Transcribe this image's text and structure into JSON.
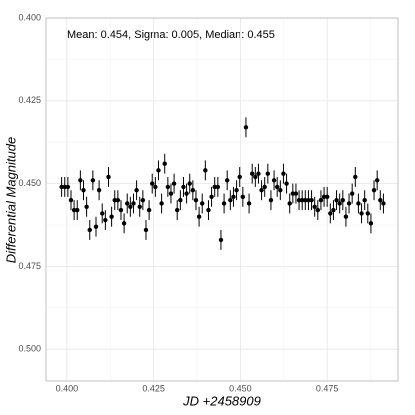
{
  "chart_data": {
    "type": "scatter",
    "annotation": "Mean: 0.454, Sigma: 0.005, Median: 0.455",
    "xlabel": "JD +2458909",
    "ylabel": "Differential Magnitude",
    "xlim": [
      0.394,
      0.4954
    ],
    "ylim": [
      0.5096,
      0.4
    ],
    "xticks": [
      {
        "value": 0.4,
        "label": "0.400"
      },
      0.425,
      {
        "value": 0.45,
        "label": "0.450"
      },
      0.475
    ],
    "yticks": [
      {
        "value": 0.4,
        "label": "0.400"
      },
      0.425,
      {
        "value": 0.45,
        "label": "0.450"
      },
      0.475,
      {
        "value": 0.5,
        "label": "0.500"
      }
    ],
    "xminor": [
      0.4125,
      0.4375,
      0.4625,
      0.4875
    ],
    "yminor": [
      0.4125,
      0.4375,
      0.4625,
      0.4875
    ],
    "grid": true,
    "series": [
      {
        "color": "#000000",
        "x": [
          0.3985,
          0.3994,
          0.4003,
          0.4012,
          0.4021,
          0.403,
          0.4039,
          0.4048,
          0.4057,
          0.4066,
          0.4075,
          0.4084,
          0.4093,
          0.4102,
          0.4111,
          0.412,
          0.4129,
          0.4138,
          0.4147,
          0.4156,
          0.4165,
          0.4174,
          0.4183,
          0.4192,
          0.4201,
          0.421,
          0.4219,
          0.4228,
          0.4237,
          0.4246,
          0.4255,
          0.4264,
          0.4273,
          0.4282,
          0.4291,
          0.43,
          0.4309,
          0.4318,
          0.4327,
          0.4336,
          0.4345,
          0.4354,
          0.4363,
          0.4372,
          0.4381,
          0.439,
          0.4399,
          0.4408,
          0.4417,
          0.4426,
          0.4435,
          0.4444,
          0.4453,
          0.4462,
          0.4471,
          0.448,
          0.4489,
          0.4498,
          0.4507,
          0.4516,
          0.4525,
          0.4534,
          0.4543,
          0.4552,
          0.4561,
          0.457,
          0.4579,
          0.4588,
          0.4597,
          0.4606,
          0.4615,
          0.4624,
          0.4633,
          0.4642,
          0.4651,
          0.466,
          0.4669,
          0.4678,
          0.4687,
          0.4696,
          0.4705,
          0.4714,
          0.4723,
          0.4732,
          0.4741,
          0.475,
          0.4759,
          0.4768,
          0.4777,
          0.4786,
          0.4795,
          0.4804,
          0.4813,
          0.4822,
          0.4831,
          0.484,
          0.4849,
          0.4858,
          0.4867,
          0.4876,
          0.4885,
          0.4894,
          0.4903,
          0.4912
        ],
        "values": [
          0.451,
          0.451,
          0.451,
          0.455,
          0.458,
          0.458,
          0.449,
          0.452,
          0.457,
          0.464,
          0.449,
          0.463,
          0.452,
          0.459,
          0.461,
          0.448,
          0.46,
          0.455,
          0.455,
          0.458,
          0.462,
          0.456,
          0.457,
          0.456,
          0.452,
          0.457,
          0.455,
          0.464,
          0.458,
          0.45,
          0.451,
          0.446,
          0.456,
          0.444,
          0.451,
          0.453,
          0.45,
          0.458,
          0.455,
          0.451,
          0.453,
          0.45,
          0.452,
          0.455,
          0.46,
          0.456,
          0.446,
          0.458,
          0.454,
          0.451,
          0.451,
          0.467,
          0.456,
          0.449,
          0.455,
          0.454,
          0.452,
          0.448,
          0.454,
          0.433,
          0.456,
          0.447,
          0.448,
          0.447,
          0.452,
          0.451,
          0.447,
          0.455,
          0.449,
          0.451,
          0.452,
          0.447,
          0.45,
          0.456,
          0.453,
          0.453,
          0.455,
          0.455,
          0.455,
          0.455,
          0.455,
          0.457,
          0.458,
          0.455,
          0.454,
          0.454,
          0.459,
          0.458,
          0.455,
          0.456,
          0.455,
          0.46,
          0.456,
          0.453,
          0.448,
          0.456,
          0.459,
          0.455,
          0.459,
          0.462,
          0.452,
          0.449,
          0.455,
          0.456
        ],
        "errors": [
          0.003,
          0.003,
          0.003,
          0.003,
          0.003,
          0.003,
          0.003,
          0.003,
          0.003,
          0.003,
          0.003,
          0.003,
          0.003,
          0.003,
          0.003,
          0.003,
          0.003,
          0.003,
          0.003,
          0.003,
          0.003,
          0.003,
          0.003,
          0.003,
          0.003,
          0.003,
          0.003,
          0.003,
          0.003,
          0.003,
          0.003,
          0.003,
          0.003,
          0.003,
          0.003,
          0.003,
          0.003,
          0.003,
          0.003,
          0.003,
          0.003,
          0.003,
          0.003,
          0.003,
          0.003,
          0.003,
          0.003,
          0.003,
          0.003,
          0.003,
          0.003,
          0.003,
          0.003,
          0.003,
          0.003,
          0.003,
          0.003,
          0.003,
          0.003,
          0.003,
          0.003,
          0.003,
          0.003,
          0.003,
          0.003,
          0.003,
          0.003,
          0.003,
          0.003,
          0.003,
          0.003,
          0.003,
          0.003,
          0.003,
          0.003,
          0.003,
          0.003,
          0.003,
          0.003,
          0.003,
          0.003,
          0.003,
          0.003,
          0.003,
          0.003,
          0.003,
          0.003,
          0.003,
          0.003,
          0.003,
          0.003,
          0.003,
          0.003,
          0.003,
          0.003,
          0.003,
          0.003,
          0.003,
          0.003,
          0.003,
          0.003,
          0.003,
          0.003,
          0.003
        ]
      }
    ]
  }
}
